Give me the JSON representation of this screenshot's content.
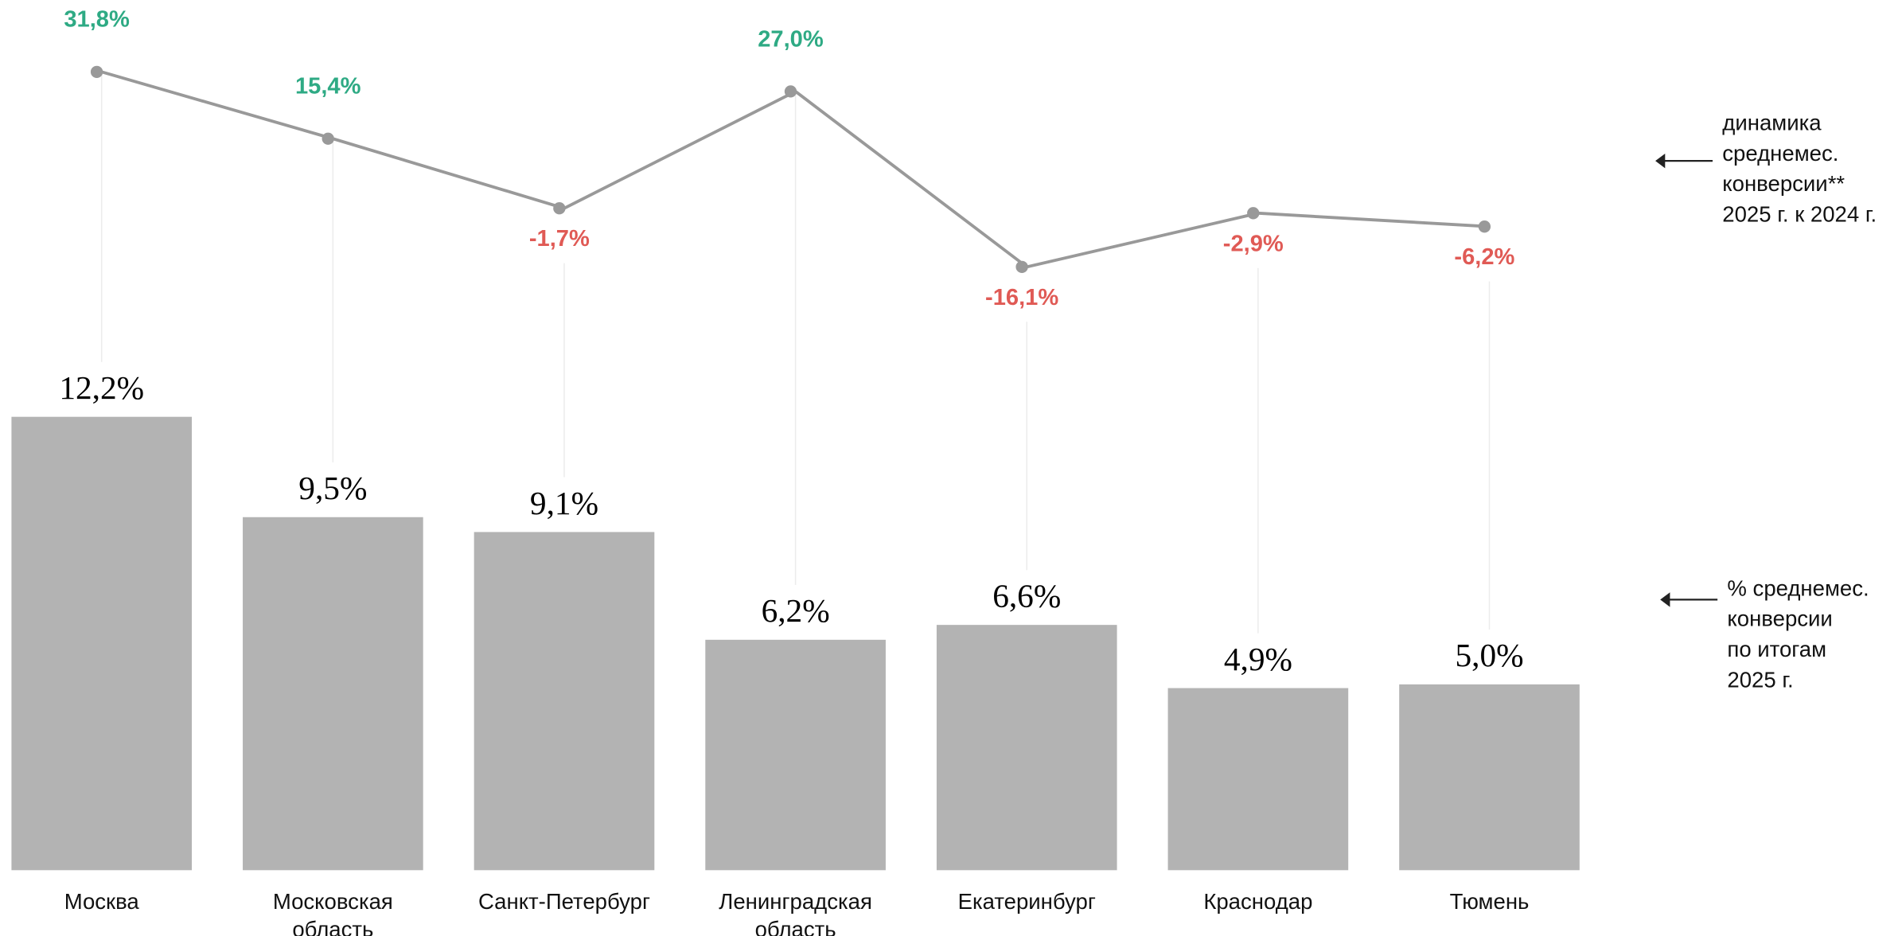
{
  "chart_data": {
    "type": "bar_line",
    "categories": [
      [
        "Москва"
      ],
      [
        "Московская",
        "область"
      ],
      [
        "Санкт-Петербург"
      ],
      [
        "Ленинградская",
        "область"
      ],
      [
        "Екатеринбург"
      ],
      [
        "Краснодар"
      ],
      [
        "Тюмень"
      ]
    ],
    "series": [
      {
        "name": [
          "% среднемес.",
          "конверсии",
          "по итогам",
          "2025 г."
        ],
        "type": "bar",
        "color": "#b3b3b3",
        "values": [
          12.2,
          9.5,
          9.1,
          6.2,
          6.6,
          4.9,
          5.0
        ],
        "value_labels": [
          "12,2%",
          "9,5%",
          "9,1%",
          "6,2%",
          "6,6%",
          "4,9%",
          "5,0%"
        ]
      },
      {
        "name": [
          "динамика",
          "среднемес.",
          "конверсии**",
          "2025 г. к 2024 г."
        ],
        "type": "line",
        "color": "#999999",
        "positive_color": "#2eaa84",
        "negative_color": "#e05a55",
        "values": [
          31.8,
          15.4,
          -1.7,
          27.0,
          -16.1,
          -2.9,
          -6.2
        ],
        "value_labels": [
          "31,8%",
          "15,4%",
          "-1,7%",
          "27,0%",
          "-16,1%",
          "-2,9%",
          "-6,2%"
        ]
      }
    ]
  }
}
